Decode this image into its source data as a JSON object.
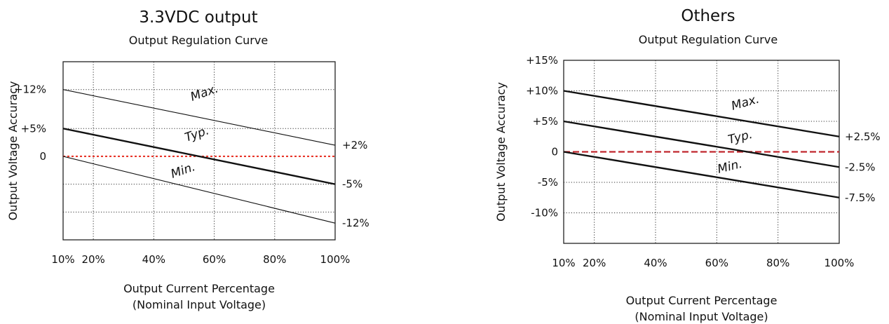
{
  "chart_data": [
    {
      "type": "line",
      "title": "3.3VDC output",
      "subtitle": "Output Regulation Curve",
      "xlabel": "Output Current Percentage",
      "xlabel2": "(Nominal Input Voltage)",
      "ylabel": "Output Voltage Accuracy",
      "x_ticks": [
        10,
        20,
        40,
        60,
        80,
        100
      ],
      "x_tick_labels": [
        "10%",
        "20%",
        "40%",
        "60%",
        "80%",
        "100%"
      ],
      "xlim": [
        10,
        100
      ],
      "ylim": [
        -15,
        17
      ],
      "y_ticks": [
        12,
        5,
        0
      ],
      "y_tick_labels": [
        "+12%",
        "+5%",
        "0"
      ],
      "y_grid": [
        12,
        5,
        0,
        -5,
        -10
      ],
      "right_labels": [
        {
          "y": 2,
          "text": "+2%"
        },
        {
          "y": -5,
          "text": "-5%"
        },
        {
          "y": -12,
          "text": "-12%"
        }
      ],
      "series": [
        {
          "name": "Max.",
          "x": [
            10,
            100
          ],
          "y": [
            12,
            2
          ],
          "weight": "thin"
        },
        {
          "name": "Typ.",
          "x": [
            10,
            100
          ],
          "y": [
            5,
            -5
          ],
          "weight": "bold"
        },
        {
          "name": "Min.",
          "x": [
            10,
            100
          ],
          "y": [
            0,
            -12
          ],
          "weight": "thin"
        }
      ],
      "reference_line": {
        "y": 0,
        "color": "#e8372b",
        "style": "dotted"
      },
      "grid": true
    },
    {
      "type": "line",
      "title": "Others",
      "subtitle": "Output Regulation Curve",
      "xlabel": "Output Current Percentage",
      "xlabel2": "(Nominal Input Voltage)",
      "ylabel": "Output Voltage Accuracy",
      "x_ticks": [
        10,
        20,
        40,
        60,
        80,
        100
      ],
      "x_tick_labels": [
        "10%",
        "20%",
        "40%",
        "60%",
        "80%",
        "100%"
      ],
      "xlim": [
        10,
        100
      ],
      "ylim": [
        -15,
        15
      ],
      "y_ticks": [
        15,
        10,
        5,
        0,
        -5,
        -10
      ],
      "y_tick_labels": [
        "+15%",
        "+10%",
        "+5%",
        "0",
        "-5%",
        "-10%"
      ],
      "y_grid": [
        10,
        5,
        0,
        -5,
        -10
      ],
      "right_labels": [
        {
          "y": 2.5,
          "text": "+2.5%"
        },
        {
          "y": -2.5,
          "text": "-2.5%"
        },
        {
          "y": -7.5,
          "text": "-7.5%"
        }
      ],
      "series": [
        {
          "name": "Max.",
          "x": [
            10,
            100
          ],
          "y": [
            10,
            2.5
          ],
          "weight": "bold"
        },
        {
          "name": "Typ.",
          "x": [
            10,
            100
          ],
          "y": [
            5,
            -2.5
          ],
          "weight": "bold"
        },
        {
          "name": "Min.",
          "x": [
            10,
            100
          ],
          "y": [
            0,
            -7.5
          ],
          "weight": "bold"
        }
      ],
      "reference_line": {
        "y": 0,
        "color": "#c0272d",
        "style": "dashed"
      },
      "grid": true
    }
  ]
}
